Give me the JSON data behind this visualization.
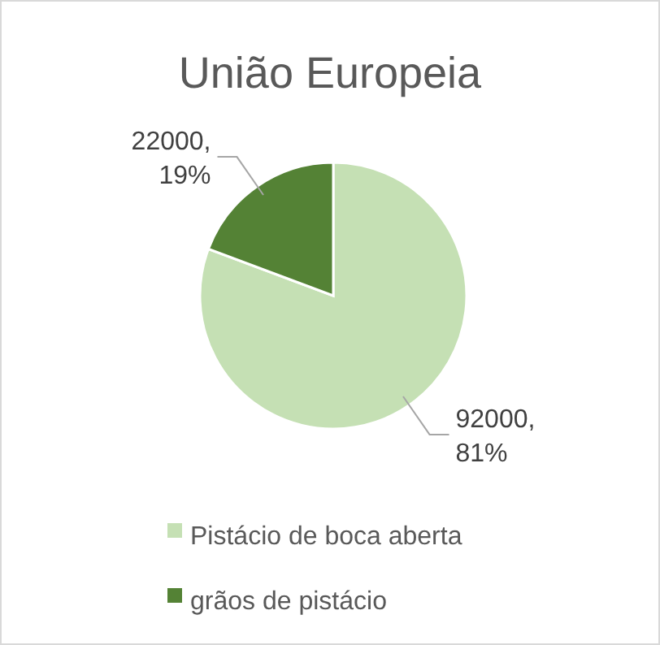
{
  "chart_data": {
    "type": "pie",
    "title": "União Europeia",
    "categories": [
      "Pistácio de boca aberta",
      "grãos de pistácio"
    ],
    "values": [
      92000,
      22000
    ],
    "colors": [
      "#c5e0b4",
      "#548235"
    ],
    "value_labels": [
      "92000, 81%",
      "22000, 19%"
    ],
    "legend": "bottom"
  }
}
